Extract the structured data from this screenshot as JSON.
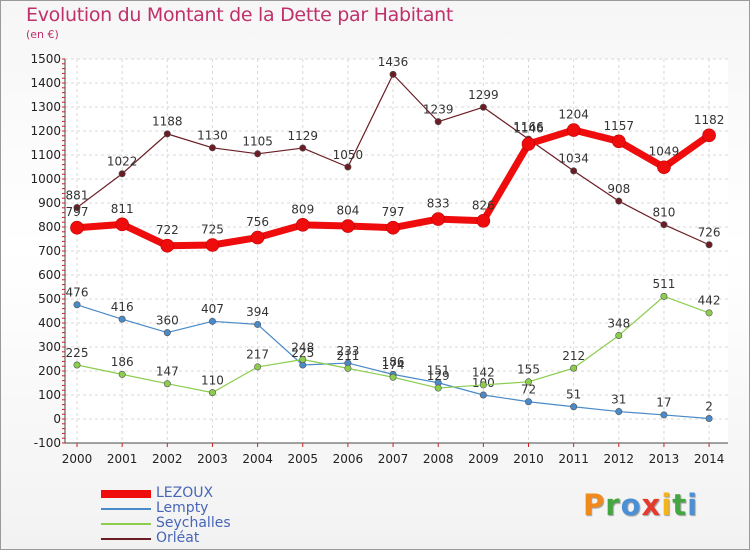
{
  "header": {
    "title": "Evolution du Montant de la Dette par Habitant",
    "subtitle": "(en €)"
  },
  "logo": {
    "letters": [
      "P",
      "r",
      "o",
      "x",
      "i",
      "t",
      "i"
    ],
    "colors": [
      "#f08a1c",
      "#43a640",
      "#4b8fd4",
      "#e53b2c",
      "#f3b51b",
      "#43a640",
      "#4b8fd4"
    ]
  },
  "chart_data": {
    "type": "line",
    "title": "Evolution du Montant de la Dette par Habitant",
    "subtitle": "(en €)",
    "xlabel": "",
    "ylabel": "",
    "x": [
      "2000",
      "2001",
      "2002",
      "2003",
      "2004",
      "2005",
      "2006",
      "2007",
      "2008",
      "2009",
      "2010",
      "2011",
      "2012",
      "2013",
      "2014"
    ],
    "ylim": [
      -100,
      1500
    ],
    "yticks": [
      -100,
      0,
      100,
      200,
      300,
      400,
      500,
      600,
      700,
      800,
      900,
      1000,
      1100,
      1200,
      1300,
      1400,
      1500
    ],
    "grid": true,
    "legend": "bottom-left",
    "series": [
      {
        "name": "Orléat",
        "color": "#6b1c24",
        "values": [
          881,
          1022,
          1188,
          1130,
          1105,
          1129,
          1050,
          1436,
          1239,
          1299,
          1166,
          1034,
          908,
          810,
          726
        ]
      },
      {
        "name": "Lempty",
        "color": "#4a8ac8",
        "values": [
          476,
          416,
          360,
          407,
          394,
          225,
          233,
          186,
          151,
          100,
          72,
          51,
          31,
          17,
          2
        ]
      },
      {
        "name": "Seychalles",
        "color": "#8ccd4e",
        "values": [
          225,
          186,
          147,
          110,
          217,
          248,
          211,
          174,
          129,
          142,
          155,
          212,
          348,
          511,
          442
        ]
      },
      {
        "name": "LEZOUX",
        "color": "#ee0c0c",
        "values": [
          797,
          811,
          722,
          725,
          756,
          809,
          804,
          797,
          833,
          826,
          1146,
          1204,
          1157,
          1049,
          1182
        ]
      }
    ],
    "legend_order": [
      "LEZOUX",
      "Lempty",
      "Seychalles",
      "Orléat"
    ]
  }
}
